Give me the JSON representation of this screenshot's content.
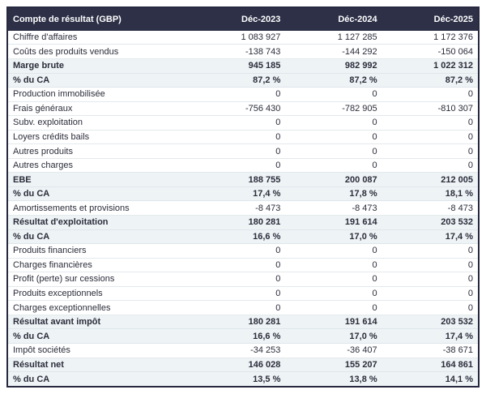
{
  "table": {
    "header": {
      "label": "Compte de résultat (GBP)",
      "columns": [
        "Déc-2023",
        "Déc-2024",
        "Déc-2025"
      ]
    },
    "colors": {
      "header_bg": "#2d3047",
      "header_text": "#ffffff",
      "total_row_bg": "#eef3f6",
      "row_border": "#e4e9ec",
      "text": "#2b2d3a"
    },
    "rows": [
      {
        "label": "Chiffre d'affaires",
        "values": [
          "1 083 927",
          "1 127 285",
          "1 172 376"
        ],
        "style": "normal"
      },
      {
        "label": "Coûts des produits vendus",
        "values": [
          "-138 743",
          "-144 292",
          "-150 064"
        ],
        "style": "normal"
      },
      {
        "label": "Marge brute",
        "values": [
          "945 185",
          "982 992",
          "1 022 312"
        ],
        "style": "total"
      },
      {
        "label": "% du CA",
        "values": [
          "87,2 %",
          "87,2 %",
          "87,2 %"
        ],
        "style": "total"
      },
      {
        "label": "Production immobilisée",
        "values": [
          "0",
          "0",
          "0"
        ],
        "style": "normal"
      },
      {
        "label": "Frais généraux",
        "values": [
          "-756 430",
          "-782 905",
          "-810 307"
        ],
        "style": "normal"
      },
      {
        "label": "Subv. exploitation",
        "values": [
          "0",
          "0",
          "0"
        ],
        "style": "normal"
      },
      {
        "label": "Loyers crédits bails",
        "values": [
          "0",
          "0",
          "0"
        ],
        "style": "normal"
      },
      {
        "label": "Autres produits",
        "values": [
          "0",
          "0",
          "0"
        ],
        "style": "normal"
      },
      {
        "label": "Autres charges",
        "values": [
          "0",
          "0",
          "0"
        ],
        "style": "normal"
      },
      {
        "label": "EBE",
        "values": [
          "188 755",
          "200 087",
          "212 005"
        ],
        "style": "total"
      },
      {
        "label": "% du CA",
        "values": [
          "17,4 %",
          "17,8 %",
          "18,1 %"
        ],
        "style": "total"
      },
      {
        "label": "Amortissements et provisions",
        "values": [
          "-8 473",
          "-8 473",
          "-8 473"
        ],
        "style": "normal"
      },
      {
        "label": "Résultat d'exploitation",
        "values": [
          "180 281",
          "191 614",
          "203 532"
        ],
        "style": "total"
      },
      {
        "label": "% du CA",
        "values": [
          "16,6 %",
          "17,0 %",
          "17,4 %"
        ],
        "style": "total"
      },
      {
        "label": "Produits financiers",
        "values": [
          "0",
          "0",
          "0"
        ],
        "style": "normal"
      },
      {
        "label": "Charges financières",
        "values": [
          "0",
          "0",
          "0"
        ],
        "style": "normal"
      },
      {
        "label": "Profit (perte) sur cessions",
        "values": [
          "0",
          "0",
          "0"
        ],
        "style": "normal"
      },
      {
        "label": "Produits exceptionnels",
        "values": [
          "0",
          "0",
          "0"
        ],
        "style": "normal"
      },
      {
        "label": "Charges exceptionnelles",
        "values": [
          "0",
          "0",
          "0"
        ],
        "style": "normal"
      },
      {
        "label": "Résultat avant impôt",
        "values": [
          "180 281",
          "191 614",
          "203 532"
        ],
        "style": "total"
      },
      {
        "label": "% du CA",
        "values": [
          "16,6 %",
          "17,0 %",
          "17,4 %"
        ],
        "style": "total"
      },
      {
        "label": "Impôt sociétés",
        "values": [
          "-34 253",
          "-36 407",
          "-38 671"
        ],
        "style": "normal"
      },
      {
        "label": "Résultat net",
        "values": [
          "146 028",
          "155 207",
          "164 861"
        ],
        "style": "total"
      },
      {
        "label": "% du CA",
        "values": [
          "13,5 %",
          "13,8 %",
          "14,1 %"
        ],
        "style": "total"
      }
    ]
  },
  "chart_data": {
    "type": "table",
    "title": "Compte de résultat (GBP)",
    "columns": [
      "Déc-2023",
      "Déc-2024",
      "Déc-2025"
    ],
    "rows": [
      {
        "label": "Chiffre d'affaires",
        "values": [
          1083927,
          1127285,
          1172376
        ]
      },
      {
        "label": "Coûts des produits vendus",
        "values": [
          -138743,
          -144292,
          -150064
        ]
      },
      {
        "label": "Marge brute",
        "values": [
          945185,
          982992,
          1022312
        ]
      },
      {
        "label": "% du CA (marge brute)",
        "values": [
          87.2,
          87.2,
          87.2
        ],
        "unit": "%"
      },
      {
        "label": "Production immobilisée",
        "values": [
          0,
          0,
          0
        ]
      },
      {
        "label": "Frais généraux",
        "values": [
          -756430,
          -782905,
          -810307
        ]
      },
      {
        "label": "Subv. exploitation",
        "values": [
          0,
          0,
          0
        ]
      },
      {
        "label": "Loyers crédits bails",
        "values": [
          0,
          0,
          0
        ]
      },
      {
        "label": "Autres produits",
        "values": [
          0,
          0,
          0
        ]
      },
      {
        "label": "Autres charges",
        "values": [
          0,
          0,
          0
        ]
      },
      {
        "label": "EBE",
        "values": [
          188755,
          200087,
          212005
        ]
      },
      {
        "label": "% du CA (EBE)",
        "values": [
          17.4,
          17.8,
          18.1
        ],
        "unit": "%"
      },
      {
        "label": "Amortissements et provisions",
        "values": [
          -8473,
          -8473,
          -8473
        ]
      },
      {
        "label": "Résultat d'exploitation",
        "values": [
          180281,
          191614,
          203532
        ]
      },
      {
        "label": "% du CA (résultat d'exploitation)",
        "values": [
          16.6,
          17.0,
          17.4
        ],
        "unit": "%"
      },
      {
        "label": "Produits financiers",
        "values": [
          0,
          0,
          0
        ]
      },
      {
        "label": "Charges financières",
        "values": [
          0,
          0,
          0
        ]
      },
      {
        "label": "Profit (perte) sur cessions",
        "values": [
          0,
          0,
          0
        ]
      },
      {
        "label": "Produits exceptionnels",
        "values": [
          0,
          0,
          0
        ]
      },
      {
        "label": "Charges exceptionnelles",
        "values": [
          0,
          0,
          0
        ]
      },
      {
        "label": "Résultat avant impôt",
        "values": [
          180281,
          191614,
          203532
        ]
      },
      {
        "label": "% du CA (résultat avant impôt)",
        "values": [
          16.6,
          17.0,
          17.4
        ],
        "unit": "%"
      },
      {
        "label": "Impôt sociétés",
        "values": [
          -34253,
          -36407,
          -38671
        ]
      },
      {
        "label": "Résultat net",
        "values": [
          146028,
          155207,
          164861
        ]
      },
      {
        "label": "% du CA (résultat net)",
        "values": [
          13.5,
          13.8,
          14.1
        ],
        "unit": "%"
      }
    ]
  }
}
